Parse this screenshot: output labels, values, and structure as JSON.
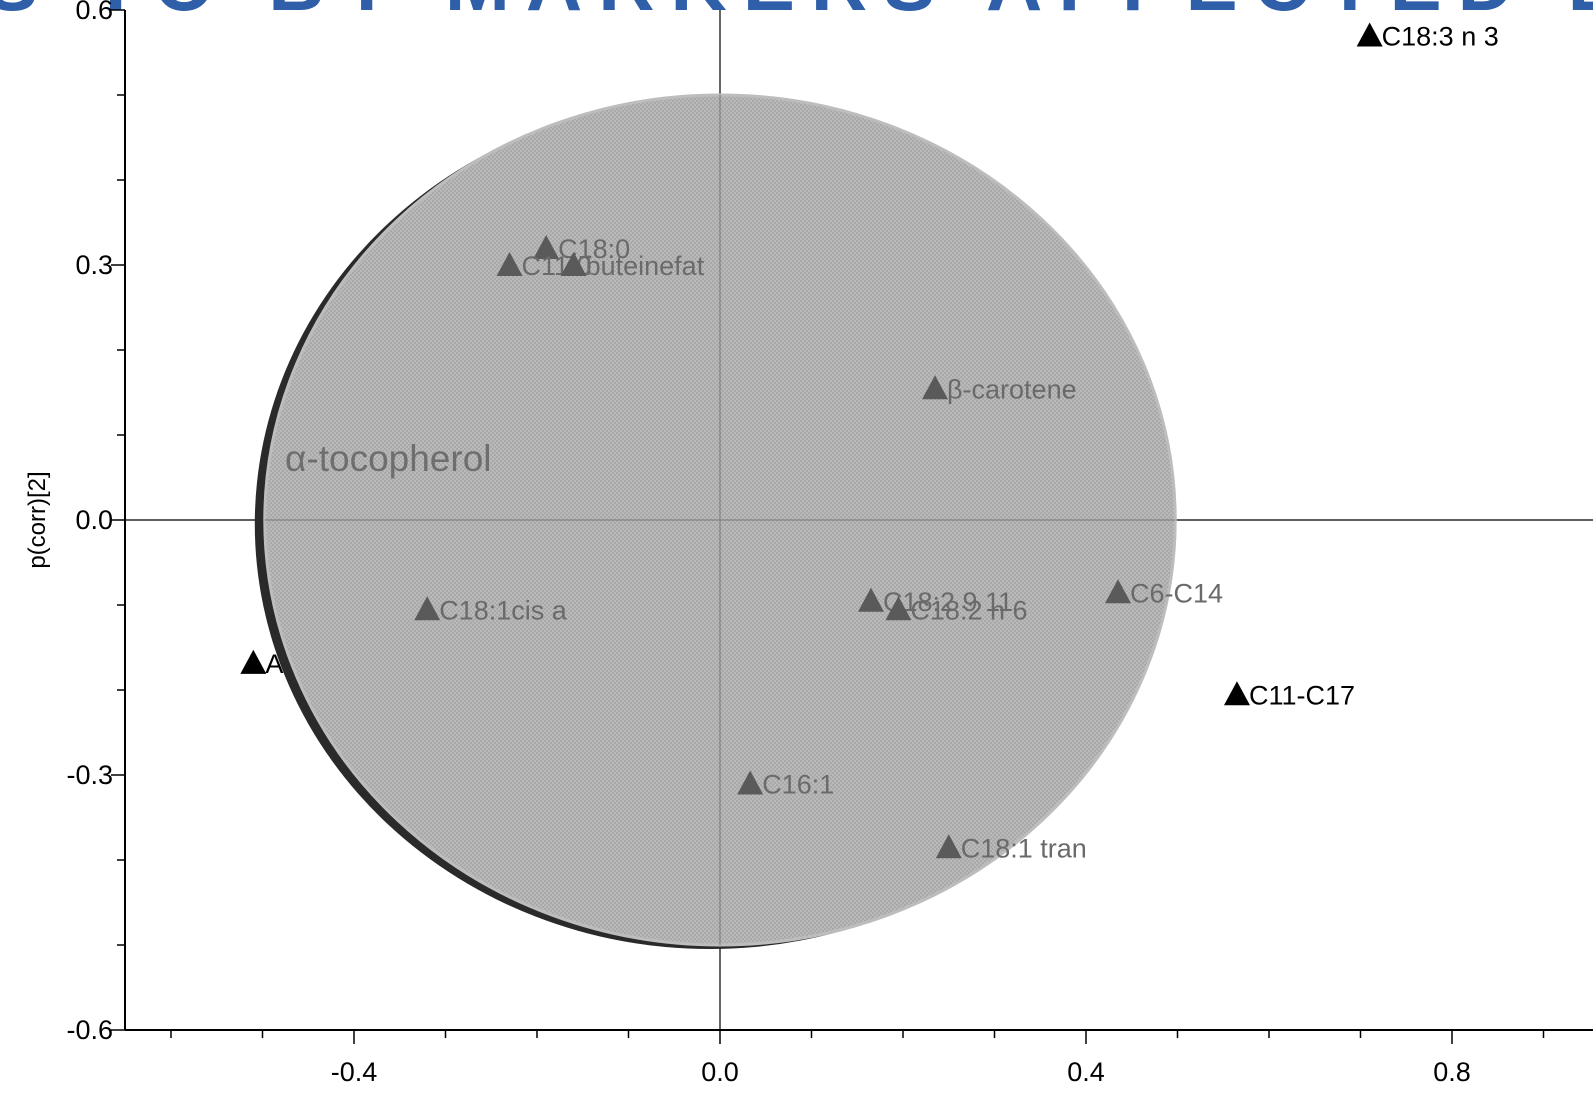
{
  "banner": {
    "text": "S TO BY MARKERS AFFECTED BY FEM"
  },
  "chart_data": {
    "type": "scatter",
    "title": "",
    "xlabel": "",
    "ylabel": "p(corr)[2]",
    "xlim": [
      -0.65,
      0.93
    ],
    "ylim": [
      -0.6,
      0.6
    ],
    "x_ticks": [
      "-0.4",
      "0.0",
      "0.4",
      "0.8"
    ],
    "y_ticks": [
      "0.6",
      "0.3",
      "0.0",
      "-0.3",
      "-0.6"
    ],
    "grid": false,
    "circle_radius": 0.5,
    "annotation": "α-tocopherol",
    "points": [
      {
        "label": "C18:3 n 3",
        "x": 0.71,
        "y": 0.57,
        "in_circle": false
      },
      {
        "label": "C18:0",
        "x": -0.19,
        "y": 0.32,
        "in_circle": true
      },
      {
        "label": "C11:0",
        "x": -0.23,
        "y": 0.3,
        "in_circle": true
      },
      {
        "label": "buteinefat",
        "x": -0.16,
        "y": 0.3,
        "in_circle": true
      },
      {
        "label": "β-carotene",
        "x": 0.235,
        "y": 0.155,
        "in_circle": true
      },
      {
        "label": "C18:1cis a",
        "x": -0.32,
        "y": -0.105,
        "in_circle": true
      },
      {
        "label": "C18:2 9 11",
        "x": 0.165,
        "y": -0.095,
        "in_circle": true
      },
      {
        "label": "C18:2 n 6",
        "x": 0.195,
        "y": -0.105,
        "in_circle": true
      },
      {
        "label": "C6-C14",
        "x": 0.435,
        "y": -0.085,
        "in_circle": true
      },
      {
        "label": "ALPHA-Toco",
        "x": -0.51,
        "y": -0.168,
        "in_circle": false
      },
      {
        "label": "C11-C17",
        "x": 0.565,
        "y": -0.205,
        "in_circle": false
      },
      {
        "label": "C16:1",
        "x": 0.033,
        "y": -0.31,
        "in_circle": true
      },
      {
        "label": "C18:1 tran",
        "x": 0.25,
        "y": -0.385,
        "in_circle": true
      }
    ]
  }
}
